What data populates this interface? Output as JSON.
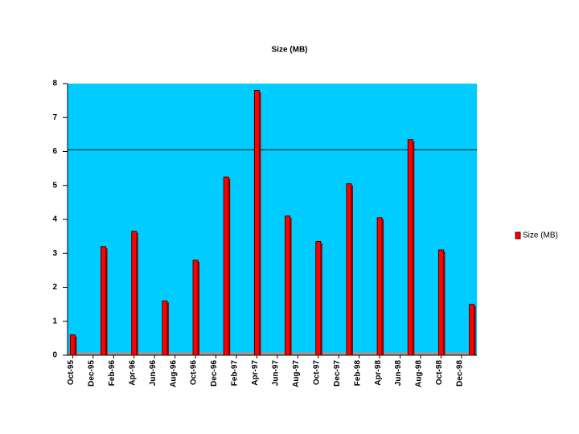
{
  "chart_data": {
    "type": "bar",
    "title": "Size (MB)",
    "categories": [
      "Oct-95",
      null,
      "Dec-95",
      null,
      "Feb-96",
      null,
      "Apr-96",
      null,
      "Jun-96",
      null,
      "Aug-96",
      null,
      "Oct-96",
      null,
      "Dec-96",
      null,
      "Feb-97",
      null,
      "Apr-97",
      null,
      "Jun-97",
      null,
      "Aug-97",
      null,
      "Oct-97",
      null,
      "Dec-97",
      null,
      "Feb-98",
      null,
      "Apr-98",
      null,
      "Jun-98",
      null,
      "Aug-98",
      null,
      "Oct-98",
      null,
      "Dec-98",
      null
    ],
    "series": [
      {
        "name": "Size (MB)",
        "color": "#ff0000",
        "values": [
          0.6,
          null,
          null,
          3.2,
          null,
          null,
          3.65,
          null,
          null,
          1.6,
          null,
          null,
          2.8,
          null,
          null,
          5.25,
          null,
          null,
          7.8,
          null,
          null,
          4.1,
          null,
          null,
          3.35,
          null,
          null,
          5.05,
          null,
          null,
          4.05,
          null,
          null,
          6.35,
          null,
          null,
          3.1,
          null,
          null,
          1.5
        ]
      }
    ],
    "ylim": [
      0,
      8
    ],
    "yticks": [
      0,
      1,
      2,
      3,
      4,
      5,
      6,
      7,
      8
    ],
    "reference_line": 6.05,
    "background": "#00ccff",
    "legend": "right"
  }
}
